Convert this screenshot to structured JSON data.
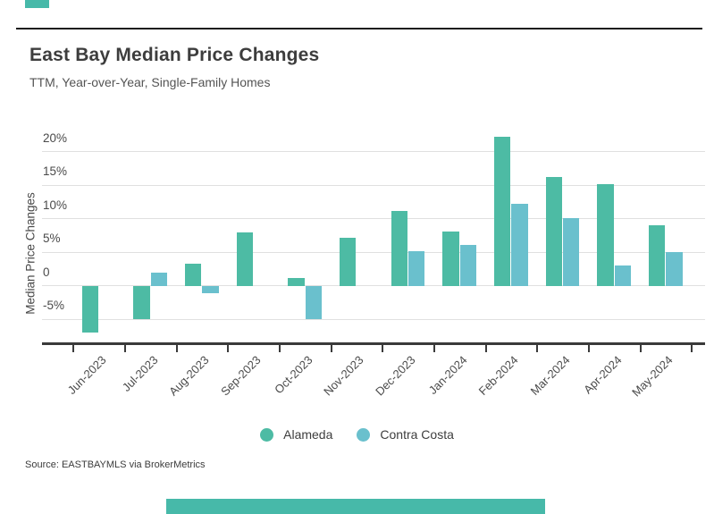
{
  "page": {
    "accent_color": "#47B9A9",
    "footer": {
      "source": "Source:  EASTBAYMLS via BrokerMetrics"
    }
  },
  "chart_data": {
    "type": "bar",
    "title": "East Bay Median Price Changes",
    "subtitle": "TTM, Year-over-Year, Single-Family Homes",
    "xlabel": "",
    "ylabel": "Median Price Changes",
    "categories": [
      "Jun-2023",
      "Jul-2023",
      "Aug-2023",
      "Sep-2023",
      "Oct-2023",
      "Nov-2023",
      "Dec-2023",
      "Jan-2024",
      "Feb-2024",
      "Mar-2024",
      "Apr-2024",
      "May-2024"
    ],
    "series": [
      {
        "name": "Alameda",
        "color": "#4DBBA4",
        "values": [
          -7.0,
          -5.0,
          3.3,
          8.0,
          1.2,
          7.1,
          11.1,
          8.1,
          22.2,
          16.2,
          15.1,
          9.0
        ]
      },
      {
        "name": "Contra Costa",
        "color": "#6AC0CD",
        "values": [
          null,
          2.0,
          -1.1,
          null,
          -5.0,
          null,
          5.1,
          6.1,
          12.2,
          10.1,
          3.0,
          5.0
        ]
      }
    ],
    "yticks": {
      "values": [
        20,
        15,
        10,
        5,
        0,
        -5
      ],
      "labels": [
        "20%",
        "15%",
        "10%",
        "5%",
        "0",
        "-5%"
      ]
    },
    "ylim": [
      -8.7,
      24
    ],
    "grid": true,
    "legend_position": "bottom",
    "axis_color": "#3a3a3a",
    "gridline_color": "#e0e0e0"
  }
}
